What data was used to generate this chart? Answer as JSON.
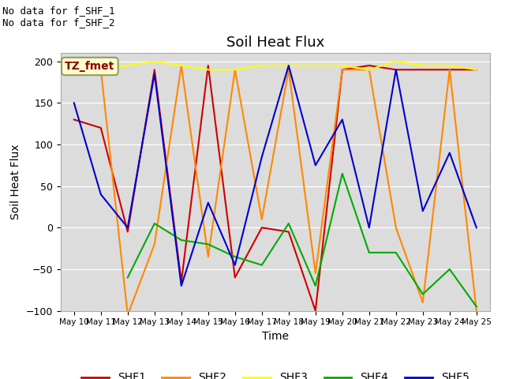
{
  "title": "Soil Heat Flux",
  "xlabel": "Time",
  "ylabel": "Soil Heat Flux",
  "ylim": [
    -100,
    210
  ],
  "yticks": [
    -100,
    -50,
    0,
    50,
    100,
    150,
    200
  ],
  "bg_color": "#dcdcdc",
  "no_data_line1": "No data for f_SHF_1",
  "no_data_line2": "No data for f_SHF_2",
  "tz_label": "TZ_fmet",
  "x_labels": [
    "May 10",
    "May 11",
    "May 12",
    "May 13",
    "May 14",
    "May 15",
    "May 16",
    "May 17",
    "May 18",
    "May 19",
    "May 20",
    "May 21",
    "May 22",
    "May 23",
    "May 24",
    "May 25"
  ],
  "x_values": [
    0,
    1,
    2,
    3,
    4,
    5,
    6,
    7,
    8,
    9,
    10,
    11,
    12,
    13,
    14,
    15
  ],
  "series": [
    {
      "key": "SHF1",
      "color": "#cc0000",
      "label": "SHF1",
      "x": [
        0,
        1,
        2,
        3,
        4,
        5,
        6,
        7,
        8,
        9,
        10,
        11,
        12,
        13,
        14,
        15
      ],
      "y": [
        130,
        120,
        -5,
        190,
        -65,
        195,
        -60,
        0,
        -5,
        -100,
        190,
        195,
        190,
        190,
        190,
        190
      ]
    },
    {
      "key": "SHF2",
      "color": "#ff8800",
      "label": "SHF2",
      "x": [
        0,
        1,
        2,
        3,
        4,
        5,
        6,
        7,
        8,
        9,
        10,
        11,
        12,
        13,
        14,
        15
      ],
      "y": [
        190,
        190,
        -105,
        -20,
        195,
        -35,
        190,
        10,
        190,
        -55,
        190,
        190,
        0,
        -90,
        190,
        -100
      ]
    },
    {
      "key": "SHF3",
      "color": "#ffff00",
      "label": "SHF3",
      "x": [
        0,
        1,
        2,
        3,
        4,
        5,
        6,
        7,
        8,
        9,
        10,
        11,
        12,
        13,
        14,
        15
      ],
      "y": [
        190,
        190,
        195,
        200,
        195,
        190,
        190,
        195,
        195,
        195,
        195,
        190,
        200,
        195,
        195,
        190
      ]
    },
    {
      "key": "SHF4",
      "color": "#00aa00",
      "label": "SHF4",
      "x": [
        2,
        3,
        4,
        5,
        6,
        7,
        8,
        9,
        10,
        11,
        12,
        13,
        14,
        15
      ],
      "y": [
        -60,
        5,
        -15,
        -20,
        -35,
        -45,
        5,
        -70,
        65,
        -30,
        -30,
        -80,
        -50,
        -95
      ]
    },
    {
      "key": "SHF5",
      "color": "#0000cc",
      "label": "SHF5",
      "x": [
        0,
        1,
        2,
        3,
        4,
        5,
        6,
        7,
        8,
        9,
        10,
        11,
        12,
        13,
        14,
        15
      ],
      "y": [
        150,
        40,
        0,
        185,
        -70,
        30,
        -45,
        85,
        195,
        75,
        130,
        0,
        190,
        20,
        90,
        0
      ]
    }
  ]
}
